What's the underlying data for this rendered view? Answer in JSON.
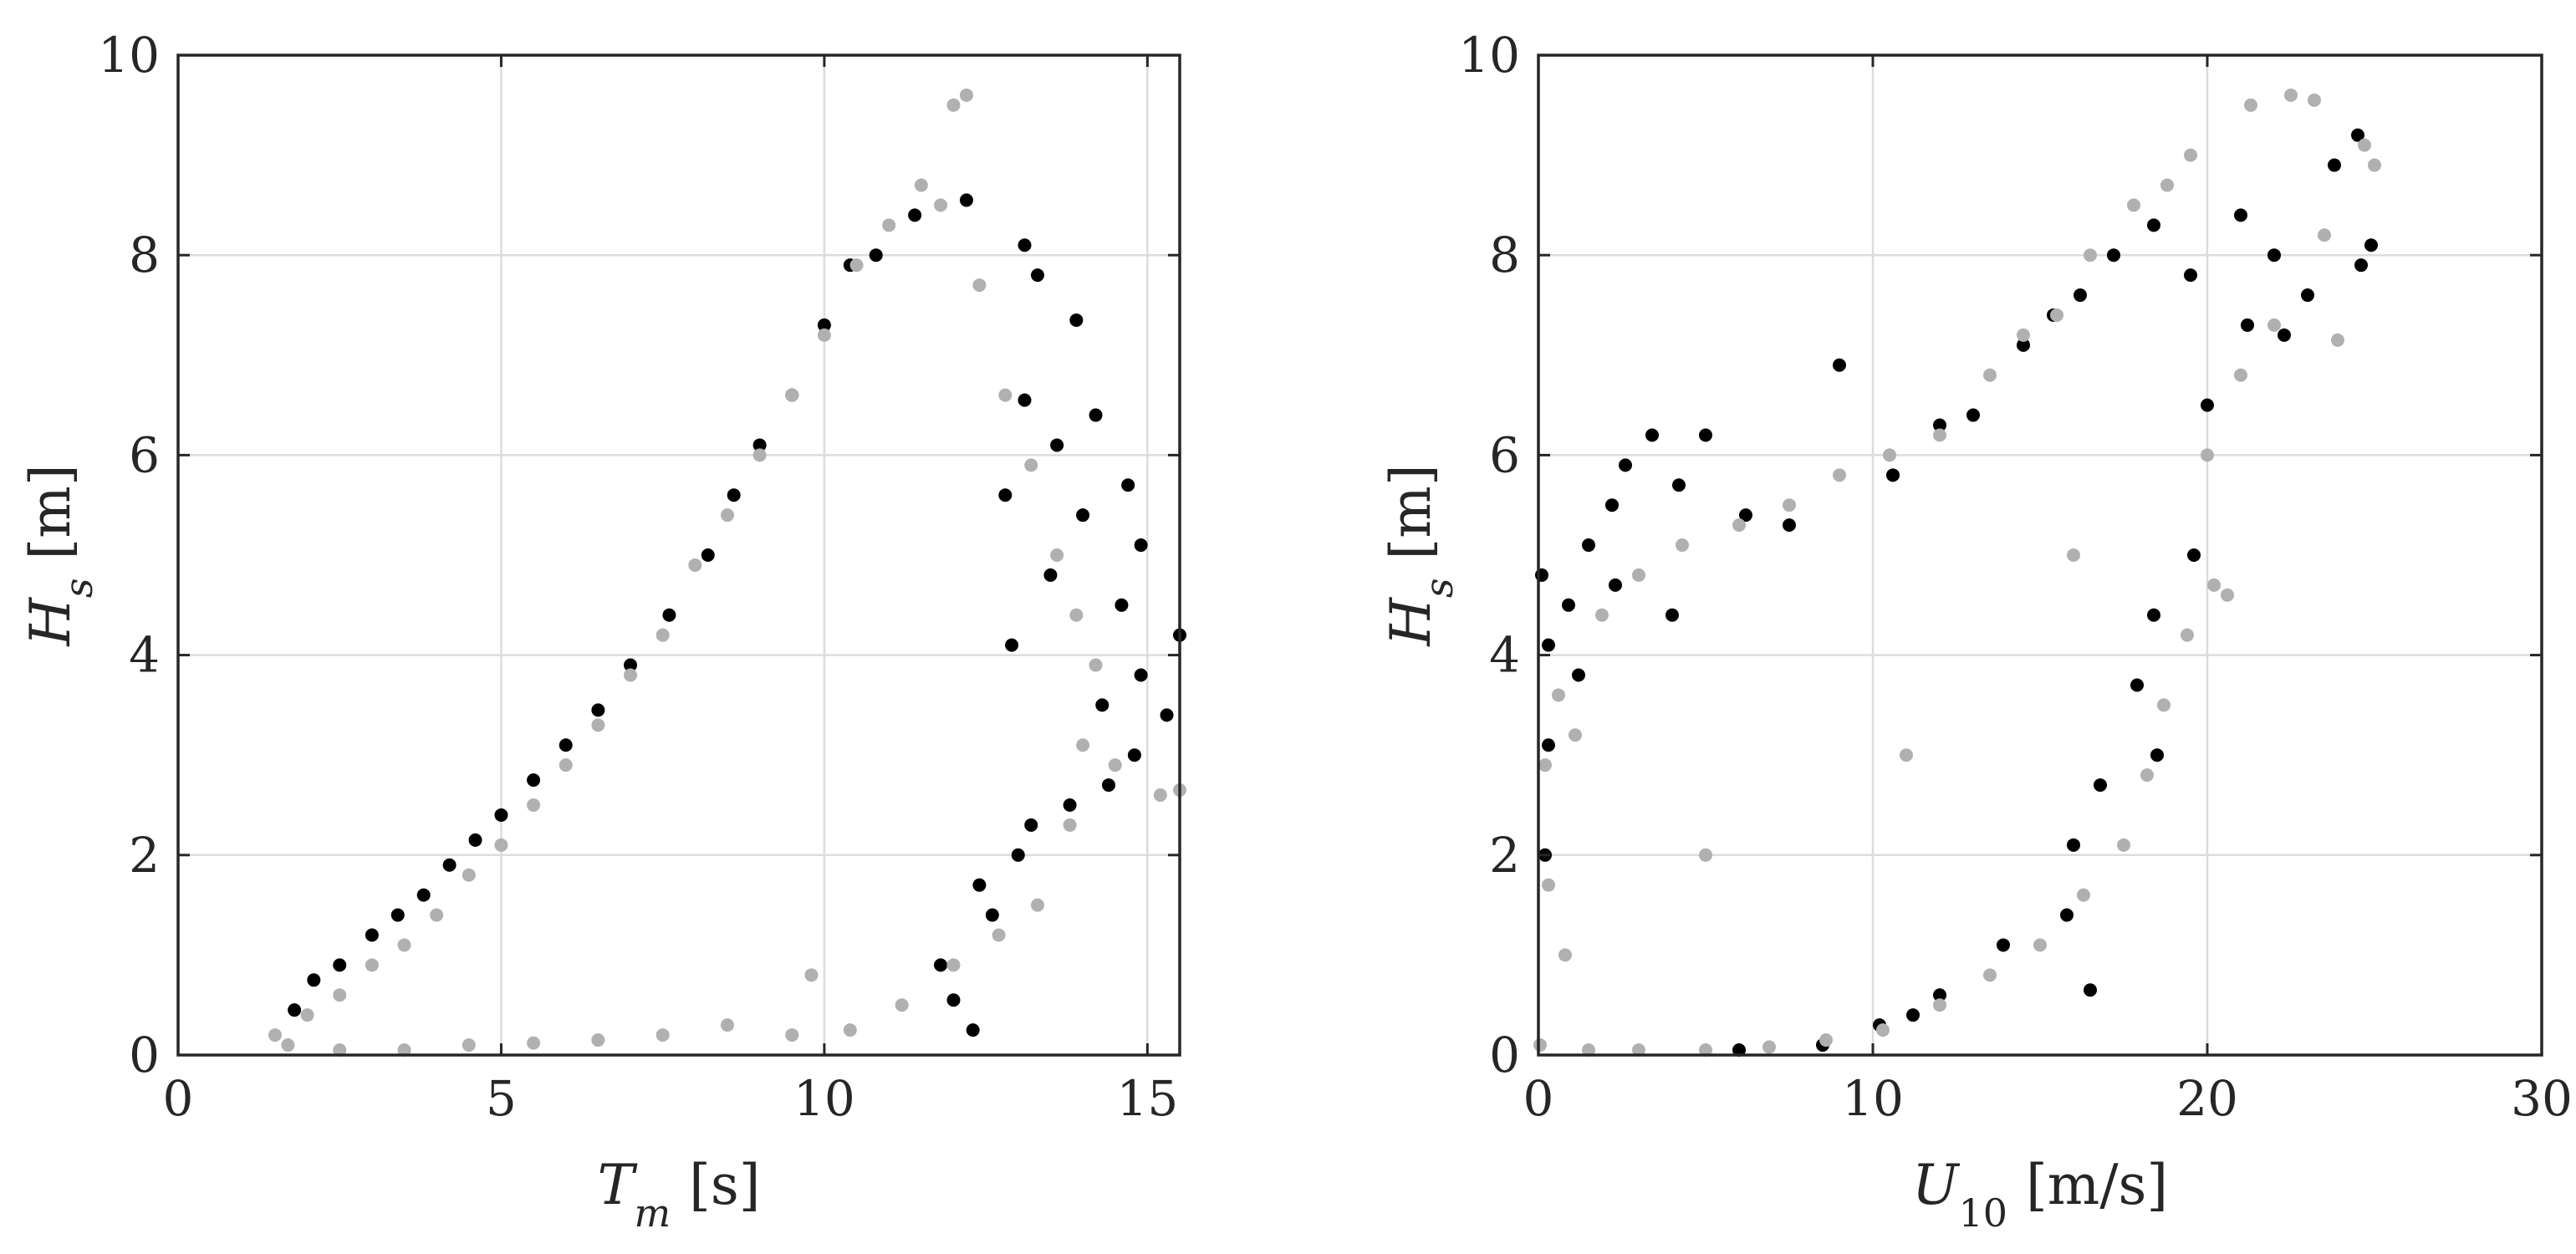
{
  "chart_data": [
    {
      "type": "scatter",
      "xlabel_main": "T",
      "xlabel_sub": "m",
      "xlabel_unit": "[s]",
      "ylabel_main": "H",
      "ylabel_sub": "s",
      "ylabel_unit": "[m]",
      "xlim": [
        0,
        15.5
      ],
      "ylim": [
        0,
        10
      ],
      "xticks": [
        "0",
        "5",
        "10",
        "15"
      ],
      "yticks": [
        "0",
        "2",
        "4",
        "6",
        "8",
        "10"
      ],
      "grid": true,
      "series": [
        {
          "color": "#000000",
          "points": [
            [
              1.8,
              0.45
            ],
            [
              2.1,
              0.75
            ],
            [
              2.5,
              0.9
            ],
            [
              3.0,
              1.2
            ],
            [
              3.4,
              1.4
            ],
            [
              3.8,
              1.6
            ],
            [
              4.2,
              1.9
            ],
            [
              4.6,
              2.15
            ],
            [
              5.0,
              2.4
            ],
            [
              5.5,
              2.75
            ],
            [
              6.0,
              3.1
            ],
            [
              6.5,
              3.45
            ],
            [
              7.0,
              3.9
            ],
            [
              7.6,
              4.4
            ],
            [
              8.2,
              5.0
            ],
            [
              8.6,
              5.6
            ],
            [
              9.0,
              6.1
            ],
            [
              9.5,
              6.6
            ],
            [
              10.0,
              7.3
            ],
            [
              10.4,
              7.9
            ],
            [
              10.8,
              8.0
            ],
            [
              11.4,
              8.4
            ],
            [
              12.2,
              8.55
            ],
            [
              13.1,
              8.1
            ],
            [
              13.3,
              7.8
            ],
            [
              13.9,
              7.35
            ],
            [
              14.0,
              5.4
            ],
            [
              14.7,
              5.7
            ],
            [
              14.9,
              5.1
            ],
            [
              15.5,
              4.2
            ],
            [
              15.3,
              3.4
            ],
            [
              14.8,
              3.0
            ],
            [
              14.4,
              2.7
            ],
            [
              13.8,
              2.5
            ],
            [
              13.2,
              2.3
            ],
            [
              13.0,
              2.0
            ],
            [
              12.4,
              1.7
            ],
            [
              12.0,
              0.55
            ],
            [
              11.8,
              0.9
            ],
            [
              12.3,
              0.25
            ],
            [
              12.6,
              1.4
            ],
            [
              13.6,
              6.1
            ],
            [
              13.1,
              6.55
            ],
            [
              14.2,
              6.4
            ],
            [
              14.6,
              4.5
            ],
            [
              14.9,
              3.8
            ],
            [
              13.5,
              4.8
            ],
            [
              12.8,
              5.6
            ],
            [
              12.9,
              4.1
            ],
            [
              14.3,
              3.5
            ]
          ]
        },
        {
          "color": "#b0b0b0",
          "points": [
            [
              1.5,
              0.2
            ],
            [
              1.7,
              0.1
            ],
            [
              2.0,
              0.4
            ],
            [
              2.5,
              0.6
            ],
            [
              3.0,
              0.9
            ],
            [
              3.5,
              1.1
            ],
            [
              4.0,
              1.4
            ],
            [
              4.5,
              1.8
            ],
            [
              5.0,
              2.1
            ],
            [
              5.5,
              2.5
            ],
            [
              6.0,
              2.9
            ],
            [
              6.5,
              3.3
            ],
            [
              7.0,
              3.8
            ],
            [
              7.5,
              4.2
            ],
            [
              8.0,
              4.9
            ],
            [
              8.5,
              5.4
            ],
            [
              9.0,
              6.0
            ],
            [
              9.5,
              6.6
            ],
            [
              10.0,
              7.2
            ],
            [
              10.5,
              7.9
            ],
            [
              11.0,
              8.3
            ],
            [
              11.5,
              8.7
            ],
            [
              12.0,
              9.5
            ],
            [
              12.2,
              9.6
            ],
            [
              11.8,
              8.5
            ],
            [
              12.4,
              7.7
            ],
            [
              12.8,
              6.6
            ],
            [
              13.2,
              5.9
            ],
            [
              13.6,
              5.0
            ],
            [
              13.9,
              4.4
            ],
            [
              14.2,
              3.9
            ],
            [
              14.0,
              3.1
            ],
            [
              14.5,
              2.9
            ],
            [
              15.2,
              2.6
            ],
            [
              15.5,
              2.65
            ],
            [
              13.8,
              2.3
            ],
            [
              13.3,
              1.5
            ],
            [
              12.7,
              1.2
            ],
            [
              12.0,
              0.9
            ],
            [
              11.2,
              0.5
            ],
            [
              10.4,
              0.25
            ],
            [
              9.5,
              0.2
            ],
            [
              8.5,
              0.3
            ],
            [
              7.5,
              0.2
            ],
            [
              6.5,
              0.15
            ],
            [
              5.5,
              0.12
            ],
            [
              4.5,
              0.1
            ],
            [
              3.5,
              0.05
            ],
            [
              2.5,
              0.05
            ],
            [
              9.8,
              0.8
            ]
          ]
        }
      ]
    },
    {
      "type": "scatter",
      "xlabel_main": "U",
      "xlabel_sub": "10",
      "xlabel_unit": "[m/s]",
      "ylabel_main": "H",
      "ylabel_sub": "s",
      "ylabel_unit": "[m]",
      "xlim": [
        0,
        30
      ],
      "ylim": [
        0,
        10
      ],
      "xticks": [
        "0",
        "10",
        "20",
        "30"
      ],
      "yticks": [
        "0",
        "2",
        "4",
        "6",
        "8",
        "10"
      ],
      "grid": true,
      "series": [
        {
          "color": "#000000",
          "points": [
            [
              0.1,
              4.8
            ],
            [
              0.3,
              4.1
            ],
            [
              0.9,
              4.5
            ],
            [
              1.5,
              5.1
            ],
            [
              2.2,
              5.5
            ],
            [
              2.6,
              5.9
            ],
            [
              3.4,
              6.2
            ],
            [
              4.2,
              5.7
            ],
            [
              5.0,
              6.2
            ],
            [
              6.2,
              5.4
            ],
            [
              7.5,
              5.3
            ],
            [
              9.0,
              6.9
            ],
            [
              10.6,
              5.8
            ],
            [
              12.0,
              6.3
            ],
            [
              13.0,
              6.4
            ],
            [
              14.5,
              7.1
            ],
            [
              15.4,
              7.4
            ],
            [
              16.2,
              7.6
            ],
            [
              17.2,
              8.0
            ],
            [
              18.4,
              8.3
            ],
            [
              19.5,
              7.8
            ],
            [
              21.0,
              8.4
            ],
            [
              22.0,
              8.0
            ],
            [
              23.8,
              8.9
            ],
            [
              24.5,
              9.2
            ],
            [
              24.9,
              8.1
            ],
            [
              24.6,
              7.9
            ],
            [
              23.0,
              7.6
            ],
            [
              22.3,
              7.2
            ],
            [
              21.2,
              7.3
            ],
            [
              20.0,
              6.5
            ],
            [
              19.6,
              5.0
            ],
            [
              18.4,
              4.4
            ],
            [
              17.9,
              3.7
            ],
            [
              18.5,
              3.0
            ],
            [
              16.8,
              2.7
            ],
            [
              16.0,
              2.1
            ],
            [
              15.8,
              1.4
            ],
            [
              13.9,
              1.1
            ],
            [
              12.0,
              0.6
            ],
            [
              11.2,
              0.4
            ],
            [
              10.2,
              0.3
            ],
            [
              8.5,
              0.1
            ],
            [
              6.0,
              0.05
            ],
            [
              16.5,
              0.65
            ],
            [
              0.3,
              3.1
            ],
            [
              0.2,
              2.0
            ],
            [
              1.2,
              3.8
            ],
            [
              2.3,
              4.7
            ],
            [
              4.0,
              4.4
            ]
          ]
        },
        {
          "color": "#b0b0b0",
          "points": [
            [
              0.05,
              0.1
            ],
            [
              0.3,
              1.7
            ],
            [
              0.2,
              2.9
            ],
            [
              0.6,
              3.6
            ],
            [
              1.1,
              3.2
            ],
            [
              1.9,
              4.4
            ],
            [
              3.0,
              4.8
            ],
            [
              4.3,
              5.1
            ],
            [
              6.0,
              5.3
            ],
            [
              7.5,
              5.5
            ],
            [
              9.0,
              5.8
            ],
            [
              10.5,
              6.0
            ],
            [
              12.0,
              6.2
            ],
            [
              13.5,
              6.8
            ],
            [
              14.5,
              7.2
            ],
            [
              15.5,
              7.4
            ],
            [
              16.5,
              8.0
            ],
            [
              17.8,
              8.5
            ],
            [
              18.8,
              8.7
            ],
            [
              19.5,
              9.0
            ],
            [
              21.3,
              9.5
            ],
            [
              22.5,
              9.6
            ],
            [
              23.2,
              9.55
            ],
            [
              25.0,
              8.9
            ],
            [
              24.7,
              9.1
            ],
            [
              23.5,
              8.2
            ],
            [
              22.0,
              7.3
            ],
            [
              21.0,
              6.8
            ],
            [
              20.0,
              6.0
            ],
            [
              20.6,
              4.6
            ],
            [
              19.4,
              4.2
            ],
            [
              18.7,
              3.5
            ],
            [
              18.2,
              2.8
            ],
            [
              17.5,
              2.1
            ],
            [
              16.3,
              1.6
            ],
            [
              15.0,
              1.1
            ],
            [
              13.5,
              0.8
            ],
            [
              12.0,
              0.5
            ],
            [
              10.3,
              0.25
            ],
            [
              8.6,
              0.15
            ],
            [
              6.9,
              0.08
            ],
            [
              5.0,
              0.05
            ],
            [
              3.0,
              0.05
            ],
            [
              1.5,
              0.05
            ],
            [
              0.8,
              1.0
            ],
            [
              20.2,
              4.7
            ],
            [
              23.9,
              7.15
            ],
            [
              16.0,
              5.0
            ],
            [
              11.0,
              3.0
            ],
            [
              5.0,
              2.0
            ]
          ]
        }
      ]
    }
  ]
}
